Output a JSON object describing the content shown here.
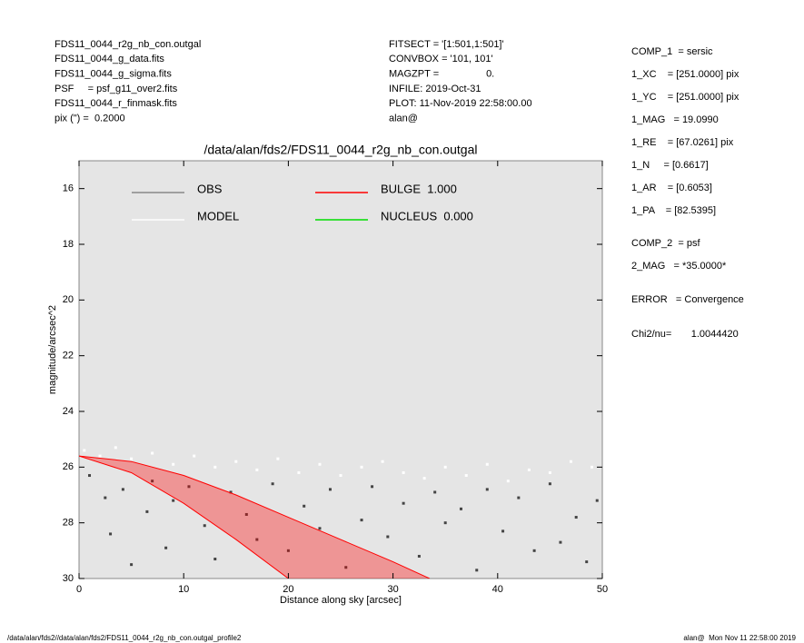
{
  "chart_data": {
    "type": "scatter",
    "title": "/data/alan/fds2/FDS11_0044_r2g_nb_con.outgal",
    "x_label": "Distance along sky [arcsec]",
    "y_label": "magnitude/arcsec^2",
    "xlim": [
      0,
      50
    ],
    "xticks": [
      0,
      10,
      20,
      30,
      40,
      50
    ],
    "ylim": [
      30,
      15
    ],
    "yticks": [
      16,
      18,
      20,
      22,
      24,
      26,
      28,
      30
    ],
    "header_left": [
      "FDS11_0044_r2g_nb_con.outgal",
      "FDS11_0044_g_data.fits",
      "FDS11_0044_g_sigma.fits",
      "PSF     = psf_g11_over2.fits",
      "FDS11_0044_r_finmask.fits",
      "pix (\") =  0.2000"
    ],
    "header_middle": [
      "FITSECT = '[1:501,1:501]'",
      "CONVBOX = '101, 101'",
      "MAGZPT =                 0.",
      "INFILE: 2019-Oct-31",
      "PLOT: 11-Nov-2019 22:58:00.00",
      "alan@"
    ],
    "side_panel": [
      "COMP_1  = sersic",
      "1_XC    = [251.0000] pix",
      "1_YC    = [251.0000] pix",
      "1_MAG   = 19.0990",
      "1_RE    = [67.0261] pix",
      "1_N     = [0.6617]",
      "1_AR    = [0.6053]",
      "1_PA    = [82.5395]",
      "COMP_2  = psf",
      "2_MAG   = *35.0000*",
      "ERROR   = Convergence",
      "Chi2/nu=       1.0044420"
    ],
    "footer_left": "/data/alan/fds2//data/alan/fds2/FDS11_0044_r2g_nb_con.outgal_profile2",
    "footer_right": "alan@  Mon Nov 11 22:58:00 2019",
    "series": [
      {
        "name": "OBS",
        "color": "#444444",
        "legend_color": "#888888",
        "x": [
          1,
          2.5,
          3,
          4.2,
          5,
          6.5,
          7,
          8.3,
          9,
          10.5,
          12,
          13,
          14.5,
          16,
          17,
          18.5,
          20,
          21.5,
          23,
          24,
          25.5,
          27,
          28,
          29.5,
          31,
          32.5,
          34,
          35,
          36.5,
          38,
          39,
          40.5,
          42,
          43.5,
          45,
          46,
          47.5,
          48.5,
          49.5
        ],
        "values": [
          26.3,
          27.1,
          28.4,
          26.8,
          29.5,
          27.6,
          26.5,
          28.9,
          27.2,
          26.7,
          28.1,
          29.3,
          26.9,
          27.7,
          28.6,
          26.6,
          29.0,
          27.4,
          28.2,
          26.8,
          29.6,
          27.9,
          26.7,
          28.5,
          27.3,
          29.2,
          26.9,
          28.0,
          27.5,
          29.7,
          26.8,
          28.3,
          27.1,
          29.0,
          26.6,
          28.7,
          27.8,
          29.4,
          27.2
        ]
      },
      {
        "name": "MODEL",
        "color": "#ffffff",
        "legend_color": "#ffffff",
        "x": [
          0.5,
          2,
          3.5,
          5,
          7,
          9,
          11,
          13,
          15,
          17,
          19,
          21,
          23,
          25,
          27,
          29,
          31,
          33,
          35,
          37,
          39,
          41,
          43,
          45,
          47,
          49
        ],
        "values": [
          25.4,
          25.6,
          25.3,
          25.7,
          25.5,
          25.9,
          25.6,
          26.0,
          25.8,
          26.1,
          25.7,
          26.2,
          25.9,
          26.3,
          26.0,
          25.8,
          26.2,
          26.4,
          26.0,
          26.3,
          25.9,
          26.5,
          26.1,
          26.2,
          25.8,
          26.0
        ]
      },
      {
        "name": "BULGE  1.000",
        "color": "#ff0000",
        "legend_color": "#ff0000",
        "x": [
          0,
          5,
          10,
          15,
          20,
          25,
          30,
          33.5
        ],
        "values": [
          25.6,
          25.8,
          26.3,
          27.0,
          27.8,
          28.6,
          29.4,
          30
        ],
        "lower_x": [
          0,
          5,
          10,
          15,
          20
        ],
        "lower_values": [
          25.6,
          26.2,
          27.3,
          28.6,
          30
        ]
      },
      {
        "name": "NUCLEUS  0.000",
        "color": "#00dd00",
        "legend_color": "#00dd00",
        "x": [],
        "values": []
      }
    ]
  }
}
